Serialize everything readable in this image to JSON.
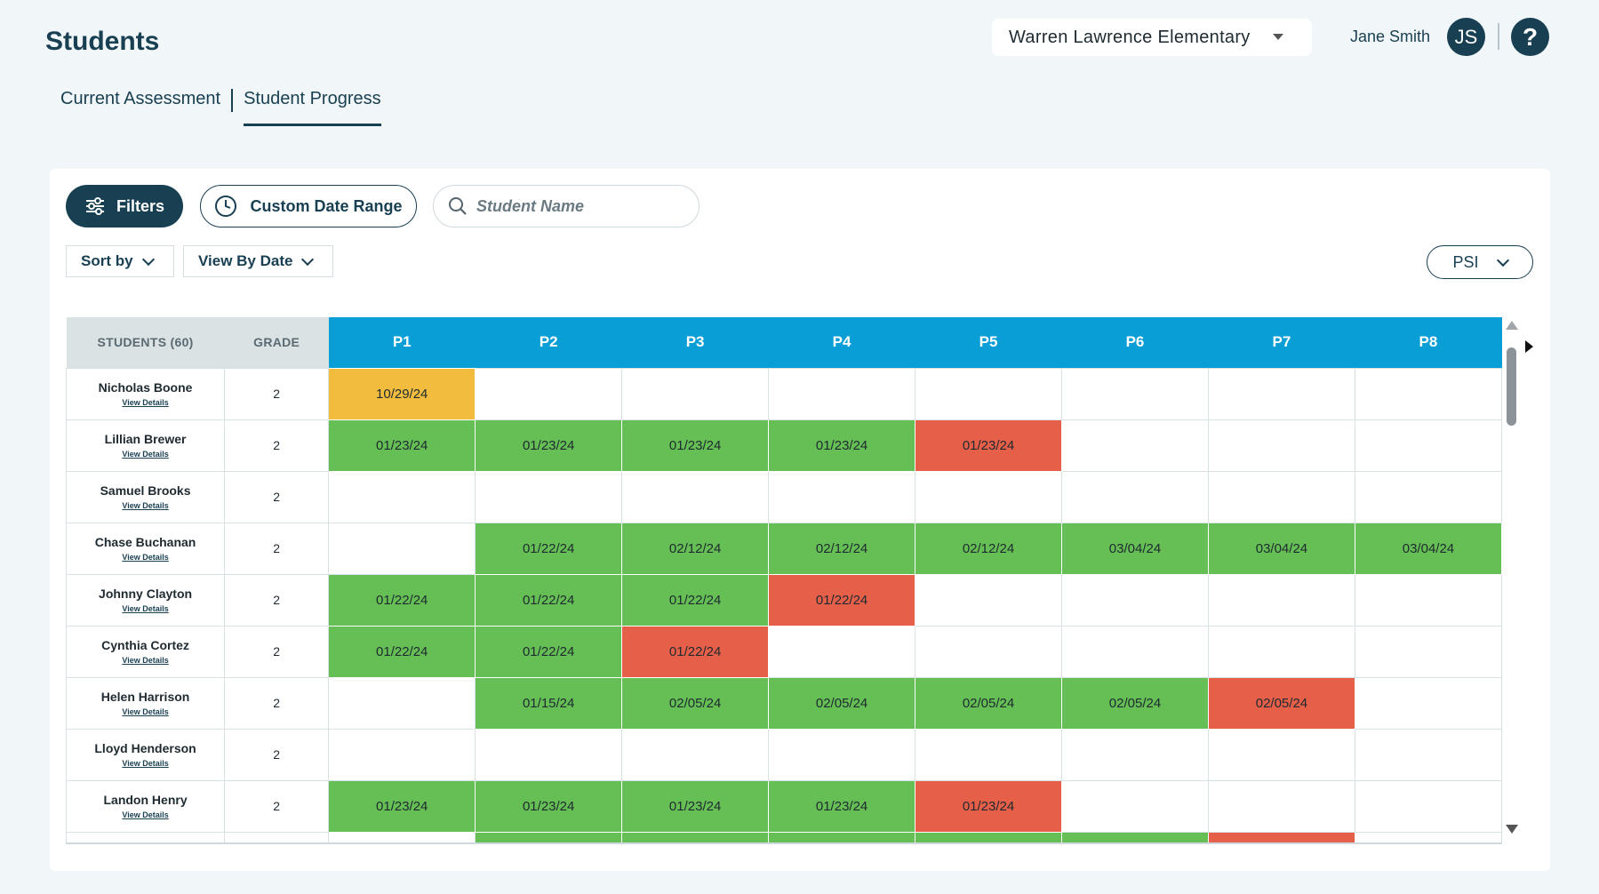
{
  "header": {
    "title": "Students",
    "school": "Warren Lawrence Elementary",
    "user_name": "Jane Smith",
    "user_initials": "JS",
    "help_symbol": "?"
  },
  "tabs": [
    {
      "label": "Current Assessment",
      "active": false
    },
    {
      "label": "Student Progress",
      "active": true
    }
  ],
  "toolbar": {
    "filters_label": "Filters",
    "date_range_label": "Custom Date Range",
    "search_placeholder": "Student Name",
    "sort_label": "Sort by",
    "view_label": "View By Date",
    "measure_label": "PSI"
  },
  "table": {
    "students_header": "STUDENTS (60)",
    "grade_header": "GRADE",
    "view_details_label": "View Details",
    "periods": [
      "P1",
      "P2",
      "P3",
      "P4",
      "P5",
      "P6",
      "P7",
      "P8"
    ],
    "status_colors": {
      "green": "#66bf55",
      "red": "#e65f48",
      "amber": "#f2bd3e"
    },
    "rows": [
      {
        "name": "Nicholas Boone",
        "grade": "2",
        "cells": [
          {
            "date": "10/29/24",
            "status": "amber"
          },
          null,
          null,
          null,
          null,
          null,
          null,
          null
        ]
      },
      {
        "name": "Lillian Brewer",
        "grade": "2",
        "cells": [
          {
            "date": "01/23/24",
            "status": "green"
          },
          {
            "date": "01/23/24",
            "status": "green"
          },
          {
            "date": "01/23/24",
            "status": "green"
          },
          {
            "date": "01/23/24",
            "status": "green"
          },
          {
            "date": "01/23/24",
            "status": "red"
          },
          null,
          null,
          null
        ]
      },
      {
        "name": "Samuel Brooks",
        "grade": "2",
        "cells": [
          null,
          null,
          null,
          null,
          null,
          null,
          null,
          null
        ]
      },
      {
        "name": "Chase Buchanan",
        "grade": "2",
        "cells": [
          null,
          {
            "date": "01/22/24",
            "status": "green"
          },
          {
            "date": "02/12/24",
            "status": "green"
          },
          {
            "date": "02/12/24",
            "status": "green"
          },
          {
            "date": "02/12/24",
            "status": "green"
          },
          {
            "date": "03/04/24",
            "status": "green"
          },
          {
            "date": "03/04/24",
            "status": "green"
          },
          {
            "date": "03/04/24",
            "status": "green"
          }
        ]
      },
      {
        "name": "Johnny Clayton",
        "grade": "2",
        "cells": [
          {
            "date": "01/22/24",
            "status": "green"
          },
          {
            "date": "01/22/24",
            "status": "green"
          },
          {
            "date": "01/22/24",
            "status": "green"
          },
          {
            "date": "01/22/24",
            "status": "red"
          },
          null,
          null,
          null,
          null
        ]
      },
      {
        "name": "Cynthia Cortez",
        "grade": "2",
        "cells": [
          {
            "date": "01/22/24",
            "status": "green"
          },
          {
            "date": "01/22/24",
            "status": "green"
          },
          {
            "date": "01/22/24",
            "status": "red"
          },
          null,
          null,
          null,
          null,
          null
        ]
      },
      {
        "name": "Helen Harrison",
        "grade": "2",
        "cells": [
          null,
          {
            "date": "01/15/24",
            "status": "green"
          },
          {
            "date": "02/05/24",
            "status": "green"
          },
          {
            "date": "02/05/24",
            "status": "green"
          },
          {
            "date": "02/05/24",
            "status": "green"
          },
          {
            "date": "02/05/24",
            "status": "green"
          },
          {
            "date": "02/05/24",
            "status": "red"
          },
          null
        ]
      },
      {
        "name": "Lloyd Henderson",
        "grade": "2",
        "cells": [
          null,
          null,
          null,
          null,
          null,
          null,
          null,
          null
        ]
      },
      {
        "name": "Landon Henry",
        "grade": "2",
        "cells": [
          {
            "date": "01/23/24",
            "status": "green"
          },
          {
            "date": "01/23/24",
            "status": "green"
          },
          {
            "date": "01/23/24",
            "status": "green"
          },
          {
            "date": "01/23/24",
            "status": "green"
          },
          {
            "date": "01/23/24",
            "status": "red"
          },
          null,
          null,
          null
        ]
      },
      {
        "name": "",
        "grade": "",
        "cells": [
          null,
          {
            "date": "",
            "status": "green"
          },
          {
            "date": "",
            "status": "green"
          },
          {
            "date": "",
            "status": "green"
          },
          {
            "date": "",
            "status": "green"
          },
          {
            "date": "",
            "status": "green"
          },
          {
            "date": "",
            "status": "red"
          },
          null
        ]
      }
    ]
  }
}
